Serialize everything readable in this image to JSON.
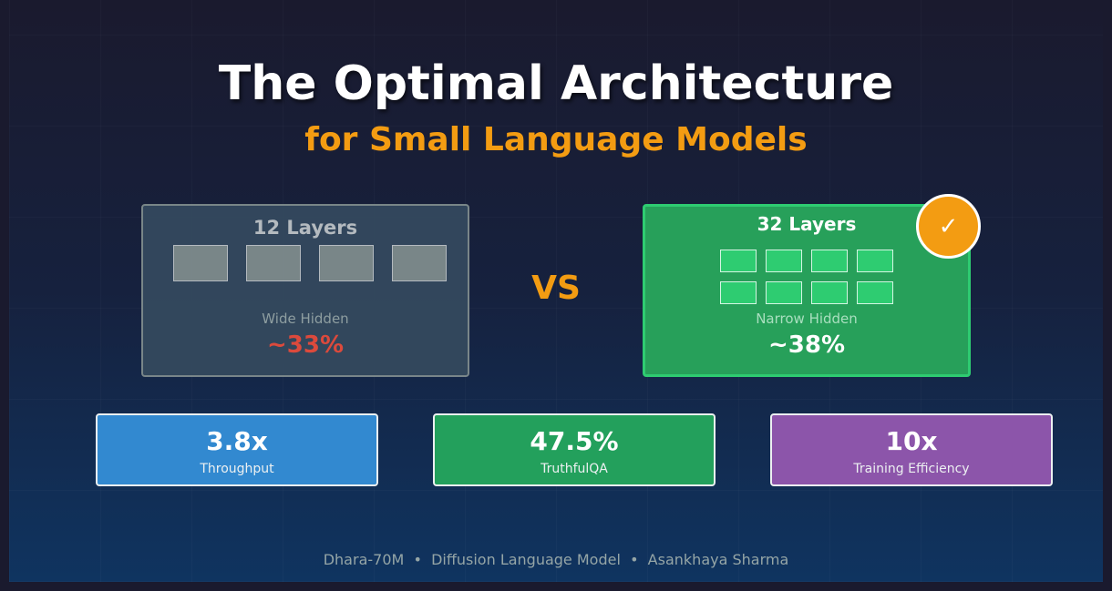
{
  "title": "The Optimal Architecture",
  "subtitle": "for Small Language Models",
  "left_card": {
    "title": "12 Layers",
    "label": "Wide Hidden",
    "value": "~33%"
  },
  "vs": "VS",
  "right_card": {
    "title": "32 Layers",
    "label": "Narrow Hidden",
    "value": "~38%",
    "badge": "✓"
  },
  "stats": [
    {
      "value": "3.8x",
      "label": "Throughput",
      "color": "#3498db"
    },
    {
      "value": "47.5%",
      "label": "TruthfulQA",
      "color": "#27ae60"
    },
    {
      "value": "10x",
      "label": "Training Efficiency",
      "color": "#9b59b6"
    }
  ],
  "footer": "Dhara-70M  •  Diffusion Language Model  •  Asankhaya Sharma"
}
